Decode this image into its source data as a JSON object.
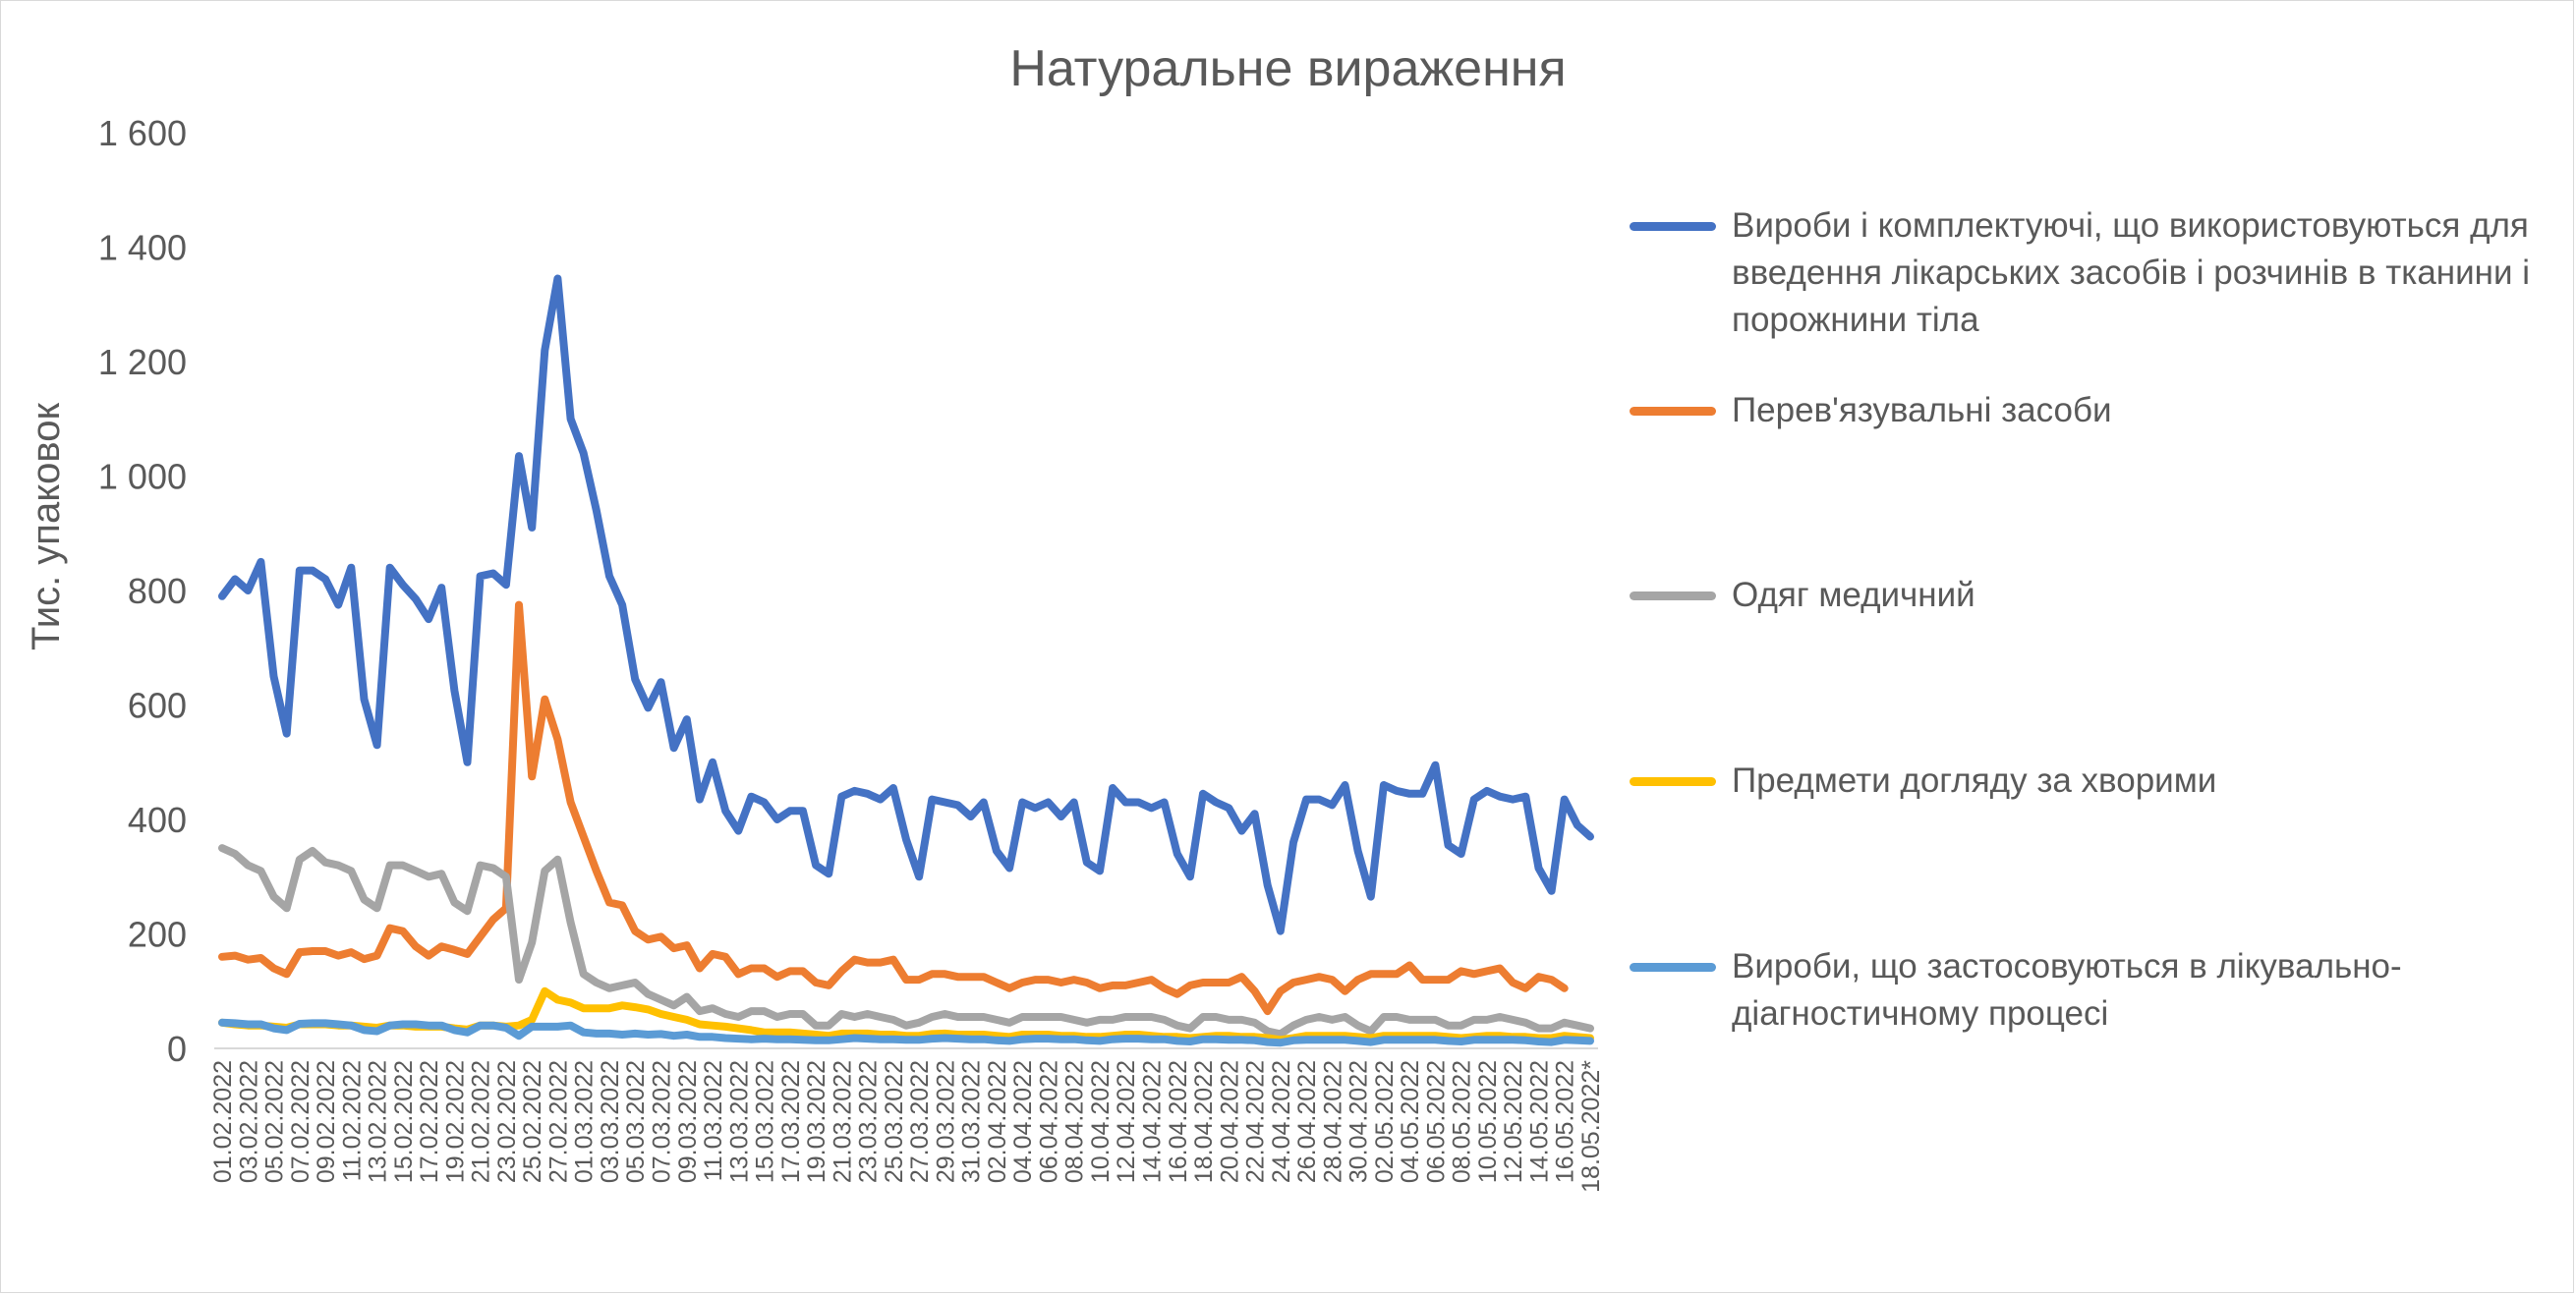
{
  "chart_data": {
    "type": "line",
    "title": "Натуральне вираження",
    "xlabel": "",
    "ylabel": "Тис. упаковок",
    "ylim": [
      0,
      1600
    ],
    "y_ticks": [
      "0",
      "200",
      "400",
      "600",
      "800",
      "1 000",
      "1 200",
      "1 400",
      "1 600"
    ],
    "y_tick_values": [
      0,
      200,
      400,
      600,
      800,
      1000,
      1200,
      1400,
      1600
    ],
    "grid": false,
    "legend_position": "right",
    "x_tick_labels": [
      "01.02.2022",
      "03.02.2022",
      "05.02.2022",
      "07.02.2022",
      "09.02.2022",
      "11.02.2022",
      "13.02.2022",
      "15.02.2022",
      "17.02.2022",
      "19.02.2022",
      "21.02.2022",
      "23.02.2022",
      "25.02.2022",
      "27.02.2022",
      "01.03.2022",
      "03.03.2022",
      "05.03.2022",
      "07.03.2022",
      "09.03.2022",
      "11.03.2022",
      "13.03.2022",
      "15.03.2022",
      "17.03.2022",
      "19.03.2022",
      "21.03.2022",
      "23.03.2022",
      "25.03.2022",
      "27.03.2022",
      "29.03.2022",
      "31.03.2022",
      "02.04.2022",
      "04.04.2022",
      "06.04.2022",
      "08.04.2022",
      "10.04.2022",
      "12.04.2022",
      "14.04.2022",
      "16.04.2022",
      "18.04.2022",
      "20.04.2022",
      "22.04.2022",
      "24.04.2022",
      "26.04.2022",
      "28.04.2022",
      "30.04.2022",
      "02.05.2022",
      "04.05.2022",
      "06.05.2022",
      "08.05.2022",
      "10.05.2022",
      "12.05.2022",
      "14.05.2022",
      "16.05.2022",
      "18.05.2022*"
    ],
    "x_points": 107,
    "series": [
      {
        "name": "Вироби і комплектуючі, що використовуються для введення лікарських засобів і розчинів в тканини і порожнини тіла",
        "color": "#4472C4",
        "values": [
          790,
          820,
          800,
          850,
          650,
          550,
          835,
          835,
          820,
          775,
          840,
          610,
          530,
          840,
          810,
          785,
          750,
          805,
          625,
          500,
          825,
          830,
          810,
          1035,
          910,
          1220,
          1345,
          1100,
          1040,
          940,
          825,
          775,
          645,
          595,
          640,
          525,
          575,
          435,
          500,
          415,
          380,
          440,
          430,
          400,
          415,
          415,
          320,
          305,
          440,
          450,
          445,
          435,
          455,
          365,
          300,
          435,
          430,
          425,
          405,
          430,
          345,
          315,
          430,
          420,
          430,
          405,
          430,
          325,
          310,
          455,
          430,
          430,
          420,
          430,
          340,
          300,
          445,
          430,
          420,
          380,
          410,
          285,
          205,
          360,
          435,
          435,
          425,
          460,
          345,
          265,
          460,
          450,
          445,
          445,
          495,
          355,
          340,
          435,
          450,
          440,
          435,
          440,
          315,
          275,
          435,
          390,
          370
        ]
      },
      {
        "name": "Перев'язувальні засоби",
        "color": "#ED7D31",
        "values": [
          160,
          162,
          155,
          158,
          140,
          130,
          168,
          170,
          170,
          162,
          168,
          156,
          162,
          210,
          205,
          178,
          162,
          178,
          172,
          165,
          195,
          225,
          245,
          775,
          475,
          610,
          540,
          430,
          370,
          310,
          255,
          250,
          205,
          190,
          195,
          175,
          180,
          140,
          165,
          160,
          130,
          140,
          140,
          125,
          135,
          135,
          115,
          110,
          135,
          155,
          150,
          150,
          155,
          120,
          120,
          130,
          130,
          125,
          125,
          125,
          115,
          105,
          115,
          120,
          120,
          115,
          120,
          115,
          105,
          110,
          110,
          115,
          120,
          105,
          95,
          110,
          115,
          115,
          115,
          125,
          100,
          65,
          100,
          115,
          120,
          125,
          120,
          100,
          120,
          130,
          130,
          130,
          145,
          120,
          120,
          120,
          135,
          130,
          135,
          140,
          115,
          105,
          125,
          120,
          105
        ]
      },
      {
        "name": "Одяг медичний",
        "color": "#A5A5A5",
        "values": [
          350,
          340,
          320,
          310,
          265,
          245,
          330,
          345,
          325,
          320,
          310,
          260,
          245,
          320,
          320,
          310,
          300,
          305,
          255,
          240,
          320,
          315,
          300,
          120,
          185,
          310,
          330,
          220,
          130,
          115,
          105,
          110,
          115,
          95,
          85,
          75,
          90,
          65,
          70,
          60,
          55,
          65,
          65,
          55,
          60,
          60,
          40,
          40,
          60,
          55,
          60,
          55,
          50,
          40,
          45,
          55,
          60,
          55,
          55,
          55,
          50,
          45,
          55,
          55,
          55,
          55,
          50,
          45,
          50,
          50,
          55,
          55,
          55,
          50,
          40,
          35,
          55,
          55,
          50,
          50,
          45,
          30,
          25,
          40,
          50,
          55,
          50,
          55,
          40,
          30,
          55,
          55,
          50,
          50,
          50,
          40,
          40,
          50,
          50,
          55,
          50,
          45,
          35,
          35,
          45,
          40,
          35
        ]
      },
      {
        "name": "Предмети догляду за хворими",
        "color": "#FFC000",
        "values": [
          45,
          42,
          40,
          40,
          38,
          36,
          42,
          42,
          42,
          40,
          40,
          38,
          36,
          40,
          40,
          38,
          38,
          38,
          35,
          33,
          40,
          40,
          38,
          40,
          50,
          100,
          85,
          80,
          70,
          70,
          70,
          75,
          72,
          68,
          60,
          55,
          50,
          42,
          40,
          38,
          35,
          32,
          28,
          28,
          28,
          26,
          24,
          22,
          26,
          26,
          26,
          24,
          24,
          22,
          22,
          25,
          26,
          24,
          24,
          24,
          22,
          20,
          24,
          24,
          24,
          22,
          22,
          20,
          20,
          22,
          24,
          24,
          22,
          20,
          20,
          18,
          20,
          22,
          22,
          20,
          20,
          18,
          15,
          18,
          22,
          22,
          22,
          22,
          20,
          18,
          22,
          22,
          22,
          22,
          22,
          20,
          18,
          20,
          22,
          22,
          20,
          20,
          18,
          18,
          22,
          20,
          18
        ]
      },
      {
        "name": "Вироби, що застосовуються в лікувально-діагностичному процесі",
        "color": "#5B9BD5",
        "values": [
          45,
          44,
          42,
          42,
          35,
          32,
          43,
          44,
          44,
          42,
          40,
          32,
          30,
          40,
          42,
          42,
          40,
          40,
          32,
          28,
          40,
          40,
          36,
          22,
          38,
          38,
          38,
          40,
          28,
          26,
          26,
          24,
          26,
          24,
          25,
          22,
          24,
          20,
          20,
          18,
          17,
          16,
          17,
          16,
          16,
          15,
          14,
          14,
          16,
          18,
          17,
          16,
          16,
          15,
          15,
          17,
          18,
          17,
          16,
          16,
          14,
          13,
          16,
          17,
          17,
          16,
          16,
          14,
          13,
          16,
          17,
          17,
          16,
          16,
          13,
          12,
          16,
          16,
          15,
          15,
          14,
          11,
          10,
          14,
          15,
          15,
          15,
          15,
          13,
          11,
          15,
          15,
          15,
          15,
          15,
          13,
          12,
          15,
          15,
          15,
          15,
          14,
          12,
          11,
          15,
          14,
          13
        ]
      }
    ]
  }
}
